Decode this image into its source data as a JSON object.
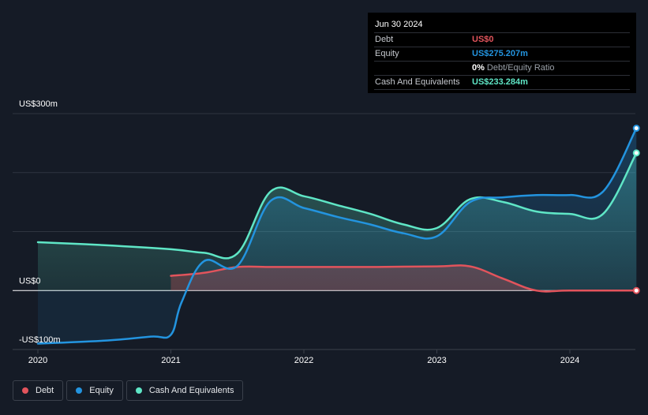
{
  "tooltip": {
    "date": "Jun 30 2024",
    "debt_label": "Debt",
    "debt_value": "US$0",
    "equity_label": "Equity",
    "equity_value": "US$275.207m",
    "ratio_pct": "0%",
    "ratio_text": "Debt/Equity Ratio",
    "cash_label": "Cash And Equivalents",
    "cash_value": "US$233.284m"
  },
  "legend": {
    "debt": "Debt",
    "equity": "Equity",
    "cash": "Cash And Equivalents"
  },
  "colors": {
    "debt": "#e2545c",
    "equity": "#2394df",
    "cash": "#5fe6c6"
  },
  "chart_data": {
    "type": "area",
    "title": "",
    "xlabel": "",
    "ylabel": "",
    "x_ticks": [
      "2020",
      "2021",
      "2022",
      "2023",
      "2024"
    ],
    "y_ticks": [
      {
        "value": 300,
        "label": "US$300m"
      },
      {
        "value": 0,
        "label": "US$0"
      },
      {
        "value": -100,
        "label": "-US$100m"
      }
    ],
    "xlim": [
      2020.0,
      2024.5
    ],
    "ylim": [
      -100,
      300
    ],
    "series": [
      {
        "name": "Debt",
        "x": [
          2021.0,
          2021.25,
          2021.5,
          2021.75,
          2022.0,
          2022.5,
          2023.0,
          2023.25,
          2023.5,
          2023.75,
          2024.0,
          2024.5
        ],
        "values": [
          25,
          30,
          40,
          40,
          40,
          40,
          41,
          41,
          20,
          0,
          0,
          0
        ]
      },
      {
        "name": "Equity",
        "x": [
          2020.0,
          2020.5,
          2020.85,
          2021.0,
          2021.08,
          2021.25,
          2021.5,
          2021.75,
          2022.0,
          2022.25,
          2022.5,
          2022.75,
          2023.0,
          2023.25,
          2023.5,
          2023.75,
          2024.0,
          2024.25,
          2024.5
        ],
        "values": [
          -90,
          -85,
          -78,
          -75,
          -20,
          50,
          42,
          152,
          140,
          125,
          112,
          97,
          92,
          150,
          158,
          162,
          162,
          168,
          275.207
        ]
      },
      {
        "name": "Cash And Equivalents",
        "x": [
          2020.0,
          2020.5,
          2021.0,
          2021.25,
          2021.5,
          2021.75,
          2022.0,
          2022.25,
          2022.5,
          2022.75,
          2023.0,
          2023.25,
          2023.5,
          2023.75,
          2024.0,
          2024.25,
          2024.5
        ],
        "values": [
          82,
          77,
          70,
          64,
          63,
          168,
          160,
          145,
          130,
          112,
          106,
          155,
          150,
          134,
          130,
          130,
          233.284
        ]
      }
    ]
  }
}
